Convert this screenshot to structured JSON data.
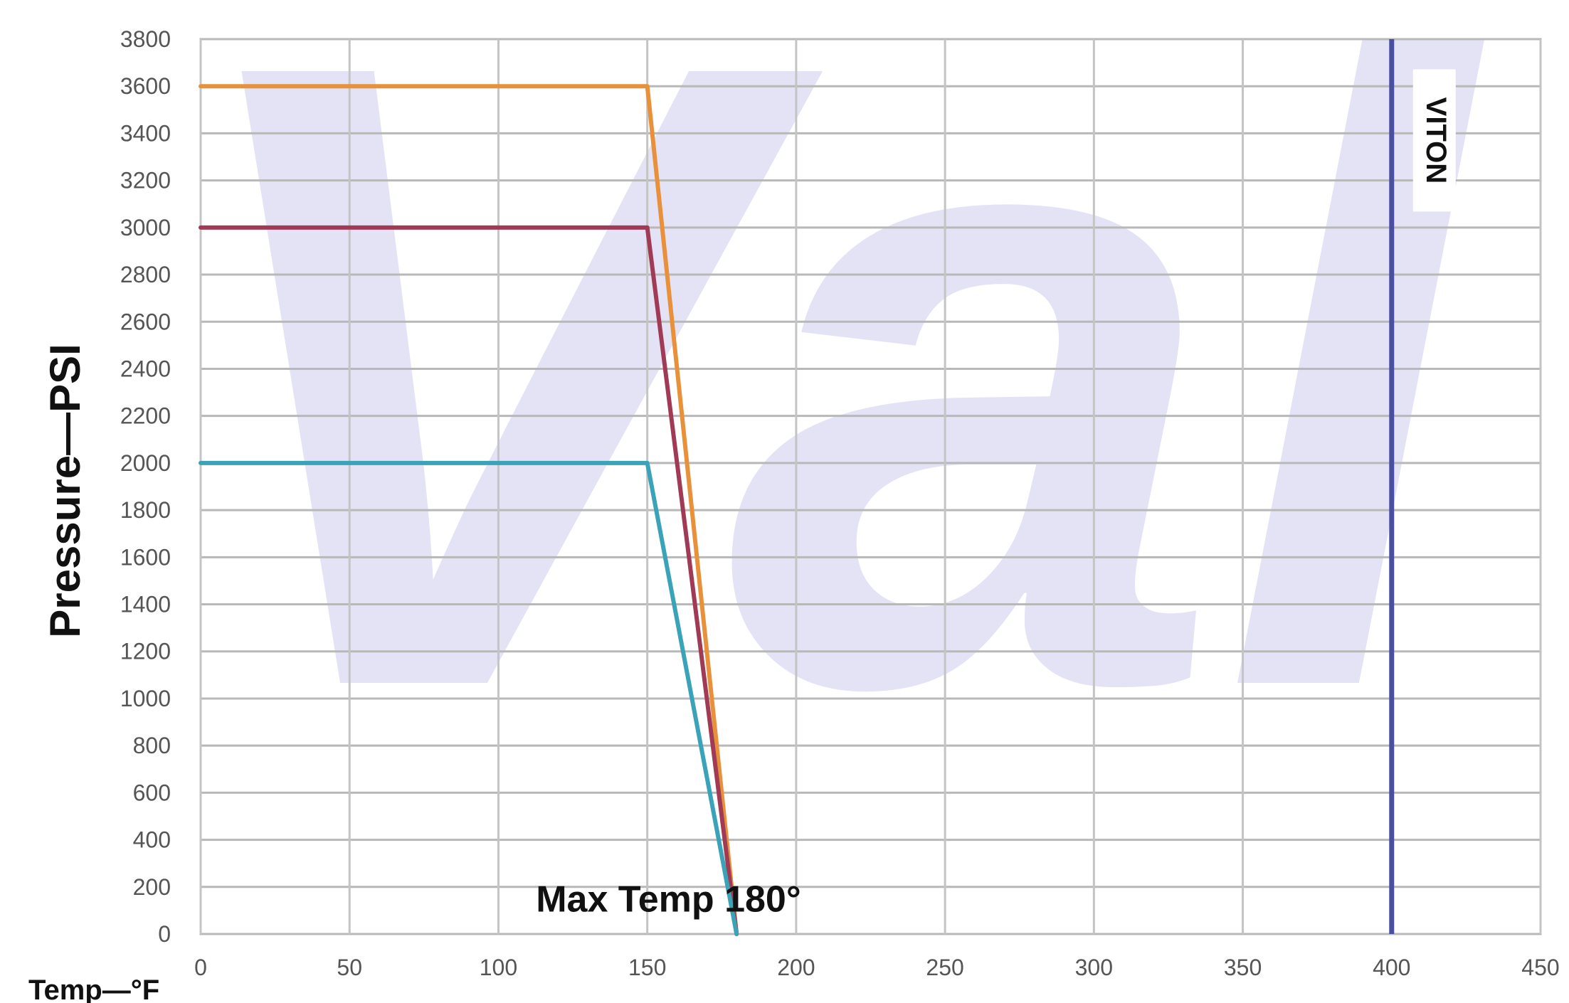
{
  "chart_data": {
    "type": "line",
    "title": "",
    "xlabel": "Temp—°F",
    "ylabel": "Pressure—PSI",
    "xlim": [
      0,
      450
    ],
    "ylim": [
      0,
      3800
    ],
    "x_ticks": [
      0,
      50,
      100,
      150,
      200,
      250,
      300,
      350,
      400,
      450
    ],
    "y_ticks": [
      0,
      200,
      400,
      600,
      800,
      1000,
      1200,
      1400,
      1600,
      1800,
      2000,
      2200,
      2400,
      2600,
      2800,
      3000,
      3200,
      3400,
      3600,
      3800
    ],
    "grid": true,
    "series": [
      {
        "color": "#e8913a",
        "points": [
          [
            0,
            3600
          ],
          [
            150,
            3600
          ],
          [
            180,
            0
          ]
        ]
      },
      {
        "color": "#a03a55",
        "points": [
          [
            0,
            3000
          ],
          [
            150,
            3000
          ],
          [
            180,
            0
          ]
        ]
      },
      {
        "color": "#3aa3b8",
        "points": [
          [
            0,
            2000
          ],
          [
            150,
            2000
          ],
          [
            180,
            0
          ]
        ]
      }
    ],
    "vertical_lines": [
      {
        "x": 400,
        "label": "VITON",
        "color": "#4a4fa0"
      }
    ],
    "annotations": [
      {
        "text": "Max Temp 180°",
        "x": 115,
        "y": 150
      }
    ],
    "watermark": {
      "text": "Val",
      "color": "#dadaf2"
    }
  }
}
